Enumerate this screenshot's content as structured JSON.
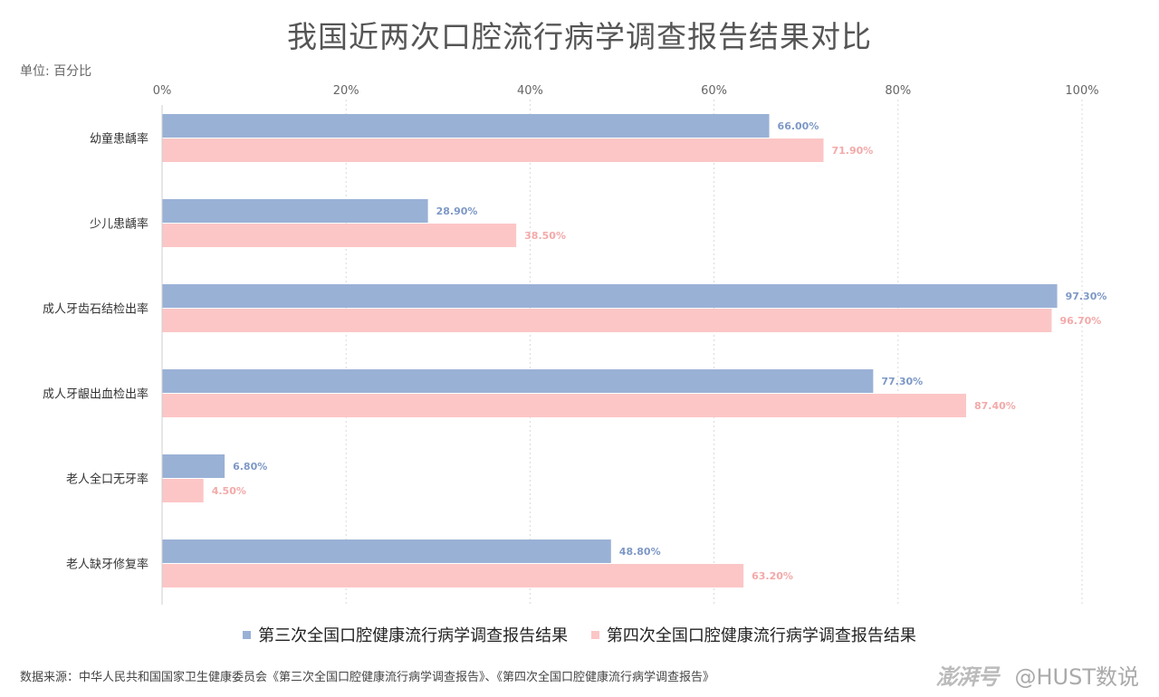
{
  "title": "我国近两次口腔流行病学调查报告结果对比",
  "unit_label": "单位: 百分比",
  "source": "数据来源：中华人民共和国国家卫生健康委员会《第三次全国口腔健康流行病学调查报告》、《第四次全国口腔健康流行病学调查报告》",
  "watermark": {
    "logo": "澎湃号",
    "handle": "@HUST数说"
  },
  "colors": {
    "series1": "#9ab1d6",
    "series2": "#fcc6c6",
    "label1": "#7d98c6",
    "label2": "#f4a9a9"
  },
  "chart_data": {
    "type": "bar",
    "orientation": "horizontal",
    "categories": [
      "幼童患龋率",
      "少儿患龋率",
      "成人牙齿石结检出率",
      "成人牙龈出血检出率",
      "老人全口无牙率",
      "老人缺牙修复率"
    ],
    "series": [
      {
        "name": "第三次全国口腔健康流行病学调查报告结果",
        "values": [
          66.0,
          28.9,
          97.3,
          77.3,
          6.8,
          48.8
        ]
      },
      {
        "name": "第四次全国口腔健康流行病学调查报告结果",
        "values": [
          71.9,
          38.5,
          96.7,
          87.4,
          4.5,
          63.2
        ]
      }
    ],
    "data_labels": [
      [
        "66.00%",
        "28.90%",
        "97.30%",
        "77.30%",
        "6.80%",
        "48.80%"
      ],
      [
        "71.90%",
        "38.50%",
        "96.70%",
        "87.40%",
        "4.50%",
        "63.20%"
      ]
    ],
    "x_ticks": [
      "0%",
      "20%",
      "40%",
      "60%",
      "80%",
      "100%"
    ],
    "xlim": [
      0,
      100
    ],
    "grid": true,
    "legend_position": "bottom"
  }
}
